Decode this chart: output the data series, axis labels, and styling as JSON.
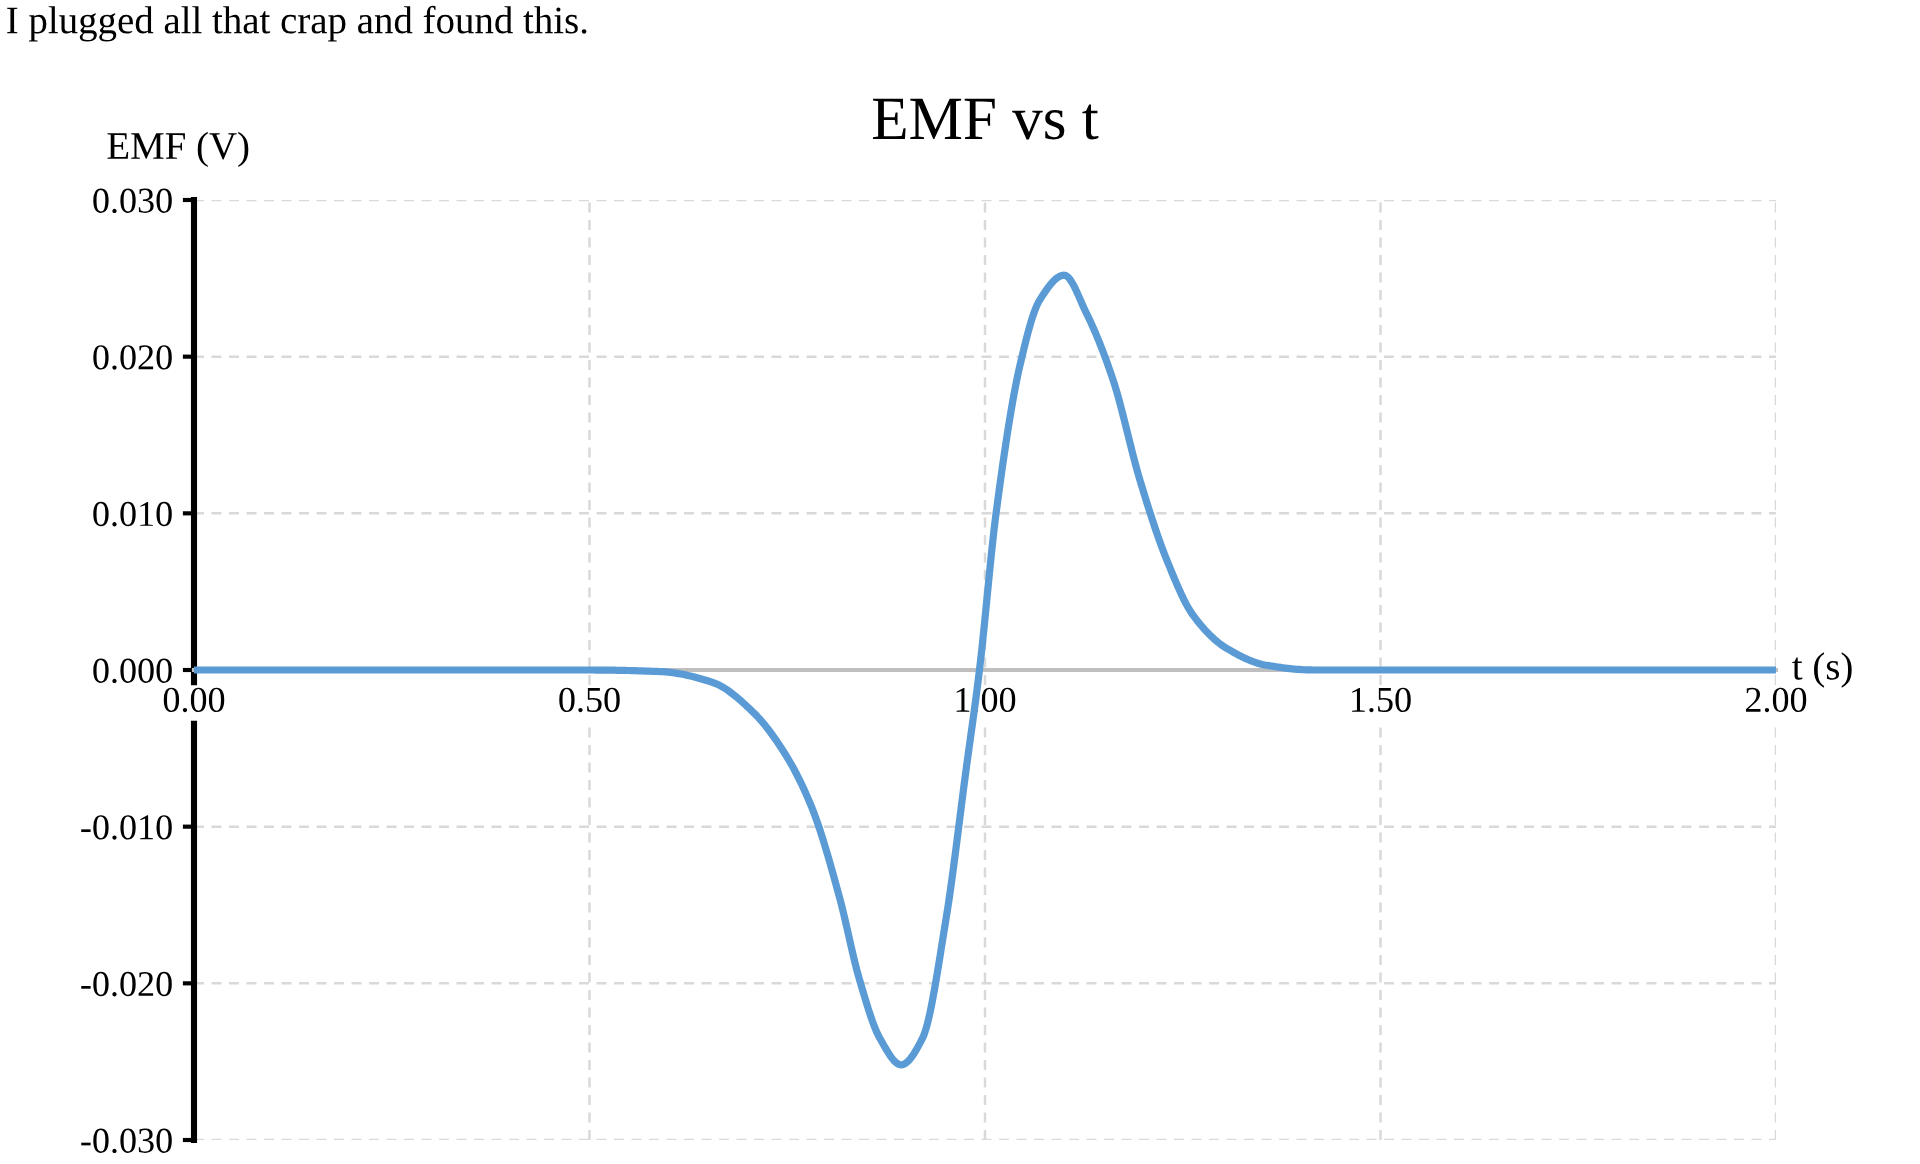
{
  "chart_data": {
    "type": "line",
    "title": "EMF vs t",
    "xlabel": "t (s)",
    "ylabel": "EMF (V)",
    "annotations": [
      "I plugged all that crap and found this."
    ],
    "x": [
      0,
      0.5,
      0.589,
      0.656,
      0.707,
      0.749,
      0.782,
      0.816,
      0.841,
      0.867,
      0.894,
      0.921,
      0.951,
      0.976,
      0.993,
      1.014,
      1.044,
      1.069,
      1.1,
      1.128,
      1.162,
      1.196,
      1.23,
      1.263,
      1.305,
      1.356,
      1.415,
      2.0
    ],
    "series": [
      {
        "color": "#5b9bd5",
        "values": [
          0,
          0,
          -0.0001,
          -0.0008,
          -0.0027,
          -0.0055,
          -0.0089,
          -0.0145,
          -0.0197,
          -0.0235,
          -0.0252,
          -0.0235,
          -0.0158,
          -0.0064,
          0,
          0.01,
          0.0194,
          0.0236,
          0.0252,
          0.0228,
          0.0185,
          0.0121,
          0.007,
          0.0035,
          0.0014,
          0.0003,
          0,
          0
        ]
      }
    ],
    "xlim": [
      0,
      2
    ],
    "xticks": [
      {
        "value": 0,
        "label": "0.00"
      },
      {
        "value": 0.5,
        "label": "0.50"
      },
      {
        "value": 1,
        "label": "1.00"
      },
      {
        "value": 1.5,
        "label": "1.50"
      },
      {
        "value": 2,
        "label": "2.00"
      }
    ],
    "ylim": [
      -0.03,
      0.03
    ],
    "yticks": [
      {
        "value": -0.03,
        "label": "-0.030"
      },
      {
        "value": -0.02,
        "label": "-0.020"
      },
      {
        "value": -0.01,
        "label": "-0.010"
      },
      {
        "value": 0,
        "label": "0.000"
      },
      {
        "value": 0.01,
        "label": "0.010"
      },
      {
        "value": 0.02,
        "label": "0.020"
      },
      {
        "value": 0.03,
        "label": "0.030"
      }
    ],
    "grid": true,
    "marker": "none",
    "line_style": "solid",
    "legend": false
  }
}
